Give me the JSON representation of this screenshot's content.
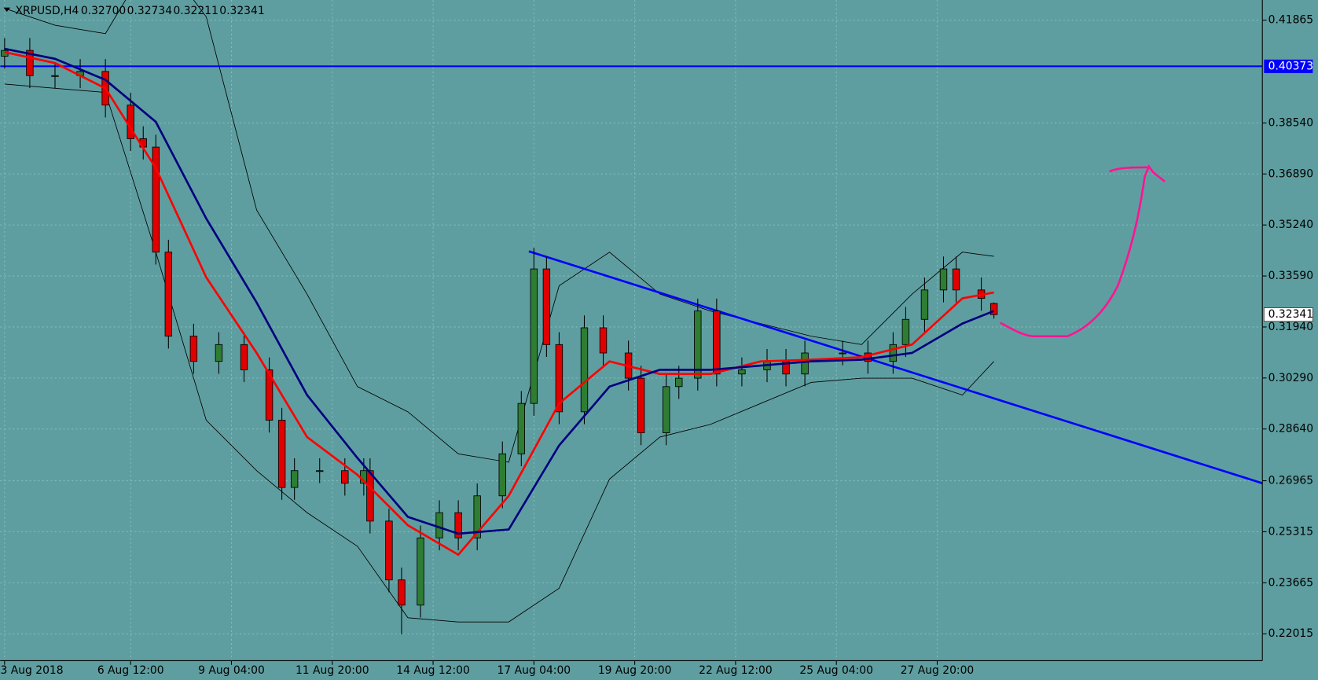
{
  "header": {
    "symbol": "XRPUSD,H4",
    "ohlc": [
      "0.32700",
      "0.32734",
      "0.32211",
      "0.32341"
    ]
  },
  "chart_data": {
    "type": "candlestick",
    "x": [
      0,
      4,
      8,
      12,
      16,
      20,
      22,
      24,
      26,
      30,
      34,
      38,
      42,
      44,
      46,
      50,
      54,
      57,
      58,
      61,
      63,
      66,
      69,
      72,
      75,
      79,
      82,
      84,
      86,
      88,
      92,
      95,
      99,
      101,
      105,
      107,
      110,
      113,
      117,
      121,
      124,
      127,
      133,
      137,
      141,
      143,
      146,
      149,
      151,
      155,
      157
    ],
    "open": [
      0.407,
      0.40887,
      0.40071,
      0.40071,
      0.40207,
      0.39119,
      0.38032,
      0.3776,
      0.34361,
      0.31643,
      0.30827,
      0.31371,
      0.30555,
      0.28924,
      0.26749,
      0.27292,
      0.27292,
      0.26885,
      0.27292,
      0.25661,
      0.23758,
      0.22942,
      0.25117,
      0.25933,
      0.25117,
      0.26477,
      0.27836,
      0.29467,
      0.33818,
      0.31371,
      0.29196,
      0.31914,
      0.31099,
      0.30283,
      0.28516,
      0.30011,
      0.30283,
      0.32458,
      0.30419,
      0.30555,
      0.30827,
      0.30419,
      0.31099,
      0.31099,
      0.30827,
      0.31371,
      0.32186,
      0.33138,
      0.33818,
      0.33138,
      0.327
    ],
    "high": [
      0.41287,
      0.41287,
      0.40471,
      0.40607,
      0.40607,
      0.39519,
      0.38432,
      0.3816,
      0.34761,
      0.32043,
      0.31771,
      0.31771,
      0.30955,
      0.29324,
      0.27692,
      0.27692,
      0.27692,
      0.27692,
      0.27692,
      0.26061,
      0.24158,
      0.25517,
      0.26333,
      0.26333,
      0.26877,
      0.28236,
      0.29867,
      0.345,
      0.34218,
      0.31771,
      0.32314,
      0.32314,
      0.31499,
      0.30683,
      0.30411,
      0.30683,
      0.32858,
      0.32858,
      0.30955,
      0.31227,
      0.31227,
      0.31499,
      0.31499,
      0.31499,
      0.31771,
      0.32586,
      0.33538,
      0.34218,
      0.34218,
      0.33538,
      0.32734
    ],
    "low": [
      0.403,
      0.39671,
      0.39671,
      0.39671,
      0.38719,
      0.37632,
      0.3736,
      0.33961,
      0.31243,
      0.30427,
      0.30427,
      0.30155,
      0.28524,
      0.26349,
      0.26349,
      0.26892,
      0.26485,
      0.26485,
      0.25261,
      0.23358,
      0.22,
      0.22542,
      0.24717,
      0.24717,
      0.24717,
      0.26077,
      0.27436,
      0.29067,
      0.30971,
      0.28796,
      0.28796,
      0.30699,
      0.29883,
      0.28116,
      0.28116,
      0.29611,
      0.29883,
      0.30019,
      0.30019,
      0.30155,
      0.30019,
      0.30019,
      0.30699,
      0.30427,
      0.30427,
      0.30971,
      0.31786,
      0.32738,
      0.32738,
      0.32466,
      0.32211
    ],
    "close": [
      0.40887,
      0.40071,
      0.40071,
      0.40207,
      0.39119,
      0.38032,
      0.3776,
      0.34361,
      0.31643,
      0.30827,
      0.31371,
      0.30555,
      0.28924,
      0.26749,
      0.27292,
      0.27292,
      0.26885,
      0.27292,
      0.25661,
      0.23758,
      0.22942,
      0.25117,
      0.25933,
      0.25117,
      0.26477,
      0.27836,
      0.29467,
      0.33818,
      0.31371,
      0.29196,
      0.31914,
      0.31099,
      0.30283,
      0.28516,
      0.30011,
      0.30283,
      0.32458,
      0.30419,
      0.30555,
      0.30827,
      0.30419,
      0.31099,
      0.31099,
      0.30827,
      0.31371,
      0.32186,
      0.33138,
      0.33818,
      0.33138,
      0.32866,
      0.32341
    ],
    "up_color": "#2e7d32",
    "down_color": "#e00000",
    "indicator_x": [
      0,
      8,
      16,
      24,
      32,
      40,
      48,
      56,
      64,
      72,
      80,
      88,
      96,
      104,
      112,
      120,
      128,
      136,
      144,
      152,
      157
    ],
    "indicators": [
      {
        "key": "ma_fast",
        "color": "#ff0000",
        "width": 2.5,
        "values": [
          0.40832,
          0.40479,
          0.39663,
          0.3708,
          0.33546,
          0.31099,
          0.2838,
          0.27156,
          0.25525,
          0.24573,
          0.26477,
          0.29467,
          0.30827,
          0.30419,
          0.30419,
          0.30827,
          0.30881,
          0.30963,
          0.31371,
          0.32866,
          0.33056
        ]
      },
      {
        "key": "ma_slow",
        "color": "#000080",
        "width": 2.5,
        "values": [
          0.40941,
          0.40615,
          0.39935,
          0.38576,
          0.35449,
          0.3273,
          0.29739,
          0.277,
          0.25797,
          0.25253,
          0.25389,
          0.28108,
          0.30011,
          0.30555,
          0.30555,
          0.30691,
          0.30827,
          0.30881,
          0.31099,
          0.3205,
          0.32458
        ]
      },
      {
        "key": "bb_upper",
        "color": "#000000",
        "width": 0.8,
        "values": [
          0.42246,
          0.41702,
          0.4143,
          0.44149,
          0.41974,
          0.35721,
          0.33002,
          0.30011,
          0.29196,
          0.27836,
          0.27564,
          0.33274,
          0.34361,
          0.33002,
          0.32458,
          0.3205,
          0.31643,
          0.31371,
          0.33002,
          0.34361,
          0.34225
        ]
      },
      {
        "key": "bb_lower",
        "color": "#000000",
        "width": 0.8,
        "values": [
          0.39799,
          0.39663,
          0.39527,
          0.34361,
          0.28924,
          0.27292,
          0.25933,
          0.24845,
          0.22534,
          0.22398,
          0.22398,
          0.23486,
          0.2702,
          0.2838,
          0.28788,
          0.29467,
          0.30147,
          0.30283,
          0.30283,
          0.29739,
          0.30827
        ]
      }
    ],
    "level": {
      "value": 0.40373,
      "color": "#0000ff"
    },
    "trendline": {
      "x": [
        83.2,
        199.6
      ],
      "y": [
        0.34388,
        0.26885
      ],
      "color": "#0000ff"
    },
    "last_price": 0.32341,
    "xlim": [
      -0.7,
      199.6
    ],
    "ylim": [
      0.21145,
      0.42518
    ],
    "yticks": [
      0.41865,
      {
        "value": 0.3854,
        "label": "0.38540"
      },
      {
        "value": 0.3689,
        "label": "0.36890"
      },
      {
        "value": 0.3524,
        "label": "0.35240"
      },
      {
        "value": 0.3359,
        "label": "0.33590"
      },
      {
        "value": 0.3194,
        "label": "0.31940"
      },
      {
        "value": 0.3029,
        "label": "0.30290"
      },
      {
        "value": 0.2864,
        "label": "0.28640"
      },
      0.26965,
      0.25315,
      0.23665,
      0.22015
    ],
    "xticks": [
      {
        "value": 0,
        "label": "3 Aug 2018"
      },
      {
        "value": 20,
        "label": "6 Aug 12:00"
      },
      {
        "value": 36,
        "label": "9 Aug 04:00"
      },
      {
        "value": 52,
        "label": "11 Aug 20:00"
      },
      {
        "value": 68,
        "label": "14 Aug 12:00"
      },
      {
        "value": 84,
        "label": "17 Aug 04:00"
      },
      {
        "value": 100,
        "label": "19 Aug 20:00"
      },
      {
        "value": 116,
        "label": "22 Aug 12:00"
      },
      {
        "value": 132,
        "label": "25 Aug 04:00"
      },
      {
        "value": 148,
        "label": "27 Aug 20:00"
      }
    ],
    "grid": true
  }
}
